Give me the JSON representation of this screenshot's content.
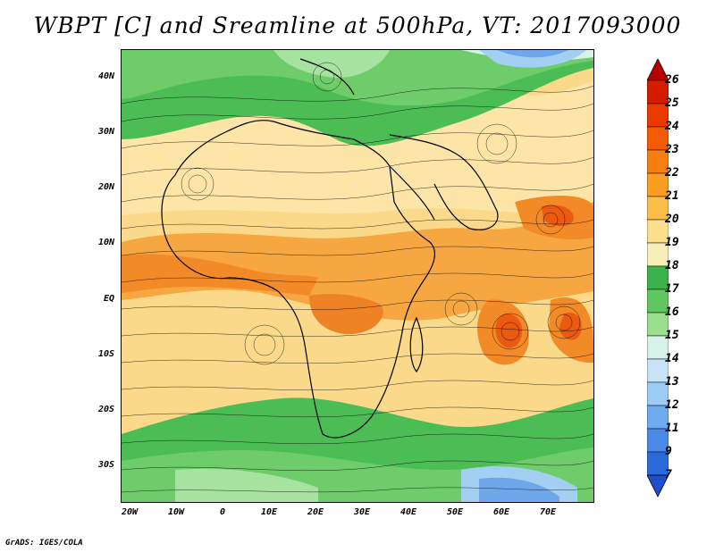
{
  "title": "WBPT [C] and Sreamline at 500hPa, VT: 2017093000",
  "footer": "GrADS: IGES/COLA",
  "y_axis_labels": [
    "40N",
    "30N",
    "20N",
    "10N",
    "EQ",
    "10S",
    "20S",
    "30S"
  ],
  "x_axis_labels": [
    "20W",
    "10W",
    "0",
    "10E",
    "20E",
    "30E",
    "40E",
    "50E",
    "60E",
    "70E"
  ],
  "colorbar": {
    "labels": [
      "26",
      "25",
      "24",
      "23",
      "22",
      "21",
      "20",
      "19",
      "18",
      "17",
      "16",
      "15",
      "14",
      "13",
      "12",
      "11",
      "9",
      "7"
    ],
    "colors": [
      "#b80000",
      "#d41c00",
      "#ea3a00",
      "#f45a00",
      "#f77e10",
      "#f99e22",
      "#fbbe4a",
      "#fde08e",
      "#f6f0b8",
      "#3cb24a",
      "#62c660",
      "#9ade8e",
      "#d8f2ea",
      "#c6e4f6",
      "#9cccf4",
      "#6eaaee",
      "#4a8ae6",
      "#2a6ada",
      "#1e4ecc"
    ]
  }
}
